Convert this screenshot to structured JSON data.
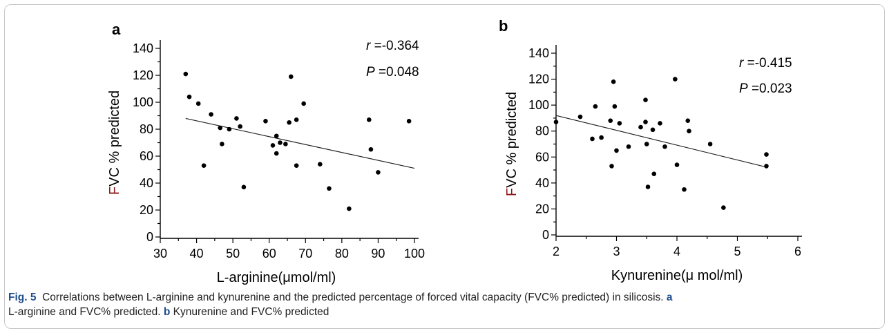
{
  "chart_data": [
    {
      "type": "scatter",
      "panel": "a",
      "xlabel": "L-arginine(μmol/ml)",
      "ylabel": "FVC % predicted",
      "xlim": [
        30,
        100
      ],
      "ylim": [
        0,
        140
      ],
      "xticks": [
        30,
        40,
        50,
        60,
        70,
        80,
        90,
        100
      ],
      "yticks": [
        0,
        20,
        40,
        60,
        80,
        100,
        120,
        140
      ],
      "stat_r": "-0.364",
      "stat_p": "0.048",
      "points": [
        {
          "x": 37,
          "y": 121
        },
        {
          "x": 38,
          "y": 104
        },
        {
          "x": 40.5,
          "y": 99
        },
        {
          "x": 42,
          "y": 53
        },
        {
          "x": 44,
          "y": 91
        },
        {
          "x": 46.5,
          "y": 81
        },
        {
          "x": 47,
          "y": 69
        },
        {
          "x": 49,
          "y": 80
        },
        {
          "x": 51,
          "y": 88
        },
        {
          "x": 52,
          "y": 82
        },
        {
          "x": 53,
          "y": 37
        },
        {
          "x": 59,
          "y": 86
        },
        {
          "x": 61,
          "y": 68
        },
        {
          "x": 62,
          "y": 75
        },
        {
          "x": 62,
          "y": 62
        },
        {
          "x": 63,
          "y": 70
        },
        {
          "x": 64.5,
          "y": 69
        },
        {
          "x": 65.5,
          "y": 85
        },
        {
          "x": 66,
          "y": 119
        },
        {
          "x": 67.5,
          "y": 87
        },
        {
          "x": 67.5,
          "y": 53
        },
        {
          "x": 69.5,
          "y": 99
        },
        {
          "x": 74,
          "y": 54
        },
        {
          "x": 76.5,
          "y": 36
        },
        {
          "x": 82,
          "y": 21
        },
        {
          "x": 87.5,
          "y": 87
        },
        {
          "x": 88,
          "y": 65
        },
        {
          "x": 90,
          "y": 48
        },
        {
          "x": 98.5,
          "y": 86
        }
      ],
      "trendline": {
        "x": [
          37,
          100
        ],
        "y": [
          88,
          51
        ]
      }
    },
    {
      "type": "scatter",
      "panel": "b",
      "xlabel": "Kynurenine(μ mol/ml)",
      "ylabel": "FVC % predicted",
      "xlim": [
        2,
        6
      ],
      "ylim": [
        0,
        140
      ],
      "xticks": [
        2,
        3,
        4,
        5,
        6
      ],
      "yticks": [
        0,
        20,
        40,
        60,
        80,
        100,
        120,
        140
      ],
      "stat_r": "-0.415",
      "stat_p": "0.023",
      "points": [
        {
          "x": 2.0,
          "y": 87
        },
        {
          "x": 2.4,
          "y": 91
        },
        {
          "x": 2.6,
          "y": 74
        },
        {
          "x": 2.65,
          "y": 99
        },
        {
          "x": 2.75,
          "y": 75
        },
        {
          "x": 2.9,
          "y": 88
        },
        {
          "x": 2.92,
          "y": 53
        },
        {
          "x": 2.95,
          "y": 118
        },
        {
          "x": 2.97,
          "y": 99
        },
        {
          "x": 3.0,
          "y": 65
        },
        {
          "x": 3.05,
          "y": 86
        },
        {
          "x": 3.2,
          "y": 68
        },
        {
          "x": 3.4,
          "y": 83
        },
        {
          "x": 3.48,
          "y": 104
        },
        {
          "x": 3.48,
          "y": 87
        },
        {
          "x": 3.5,
          "y": 70
        },
        {
          "x": 3.52,
          "y": 37
        },
        {
          "x": 3.6,
          "y": 81
        },
        {
          "x": 3.62,
          "y": 47
        },
        {
          "x": 3.72,
          "y": 86
        },
        {
          "x": 3.8,
          "y": 68
        },
        {
          "x": 3.97,
          "y": 120
        },
        {
          "x": 4.0,
          "y": 54
        },
        {
          "x": 4.12,
          "y": 35
        },
        {
          "x": 4.18,
          "y": 88
        },
        {
          "x": 4.2,
          "y": 80
        },
        {
          "x": 4.55,
          "y": 70
        },
        {
          "x": 4.77,
          "y": 21
        },
        {
          "x": 5.48,
          "y": 62
        },
        {
          "x": 5.48,
          "y": 53
        }
      ],
      "trendline": {
        "x": [
          2,
          5.5
        ],
        "y": [
          92,
          52
        ]
      }
    }
  ],
  "caption": {
    "fig_label": "Fig. 5",
    "text_1": "Correlations between L-arginine and kynurenine and the predicted percentage of forced vital capacity (FVC% predicted) in silicosis.",
    "label_a": "a",
    "text_2": "L-arginine and FVC% predicted.",
    "label_b": "b",
    "text_3": "Kynurenine and FVC% predicted"
  },
  "colors": {
    "ylabel_first_letter": "#8b1a1a",
    "caption_label": "#1f4e8c",
    "border": "#c9c9c9"
  }
}
